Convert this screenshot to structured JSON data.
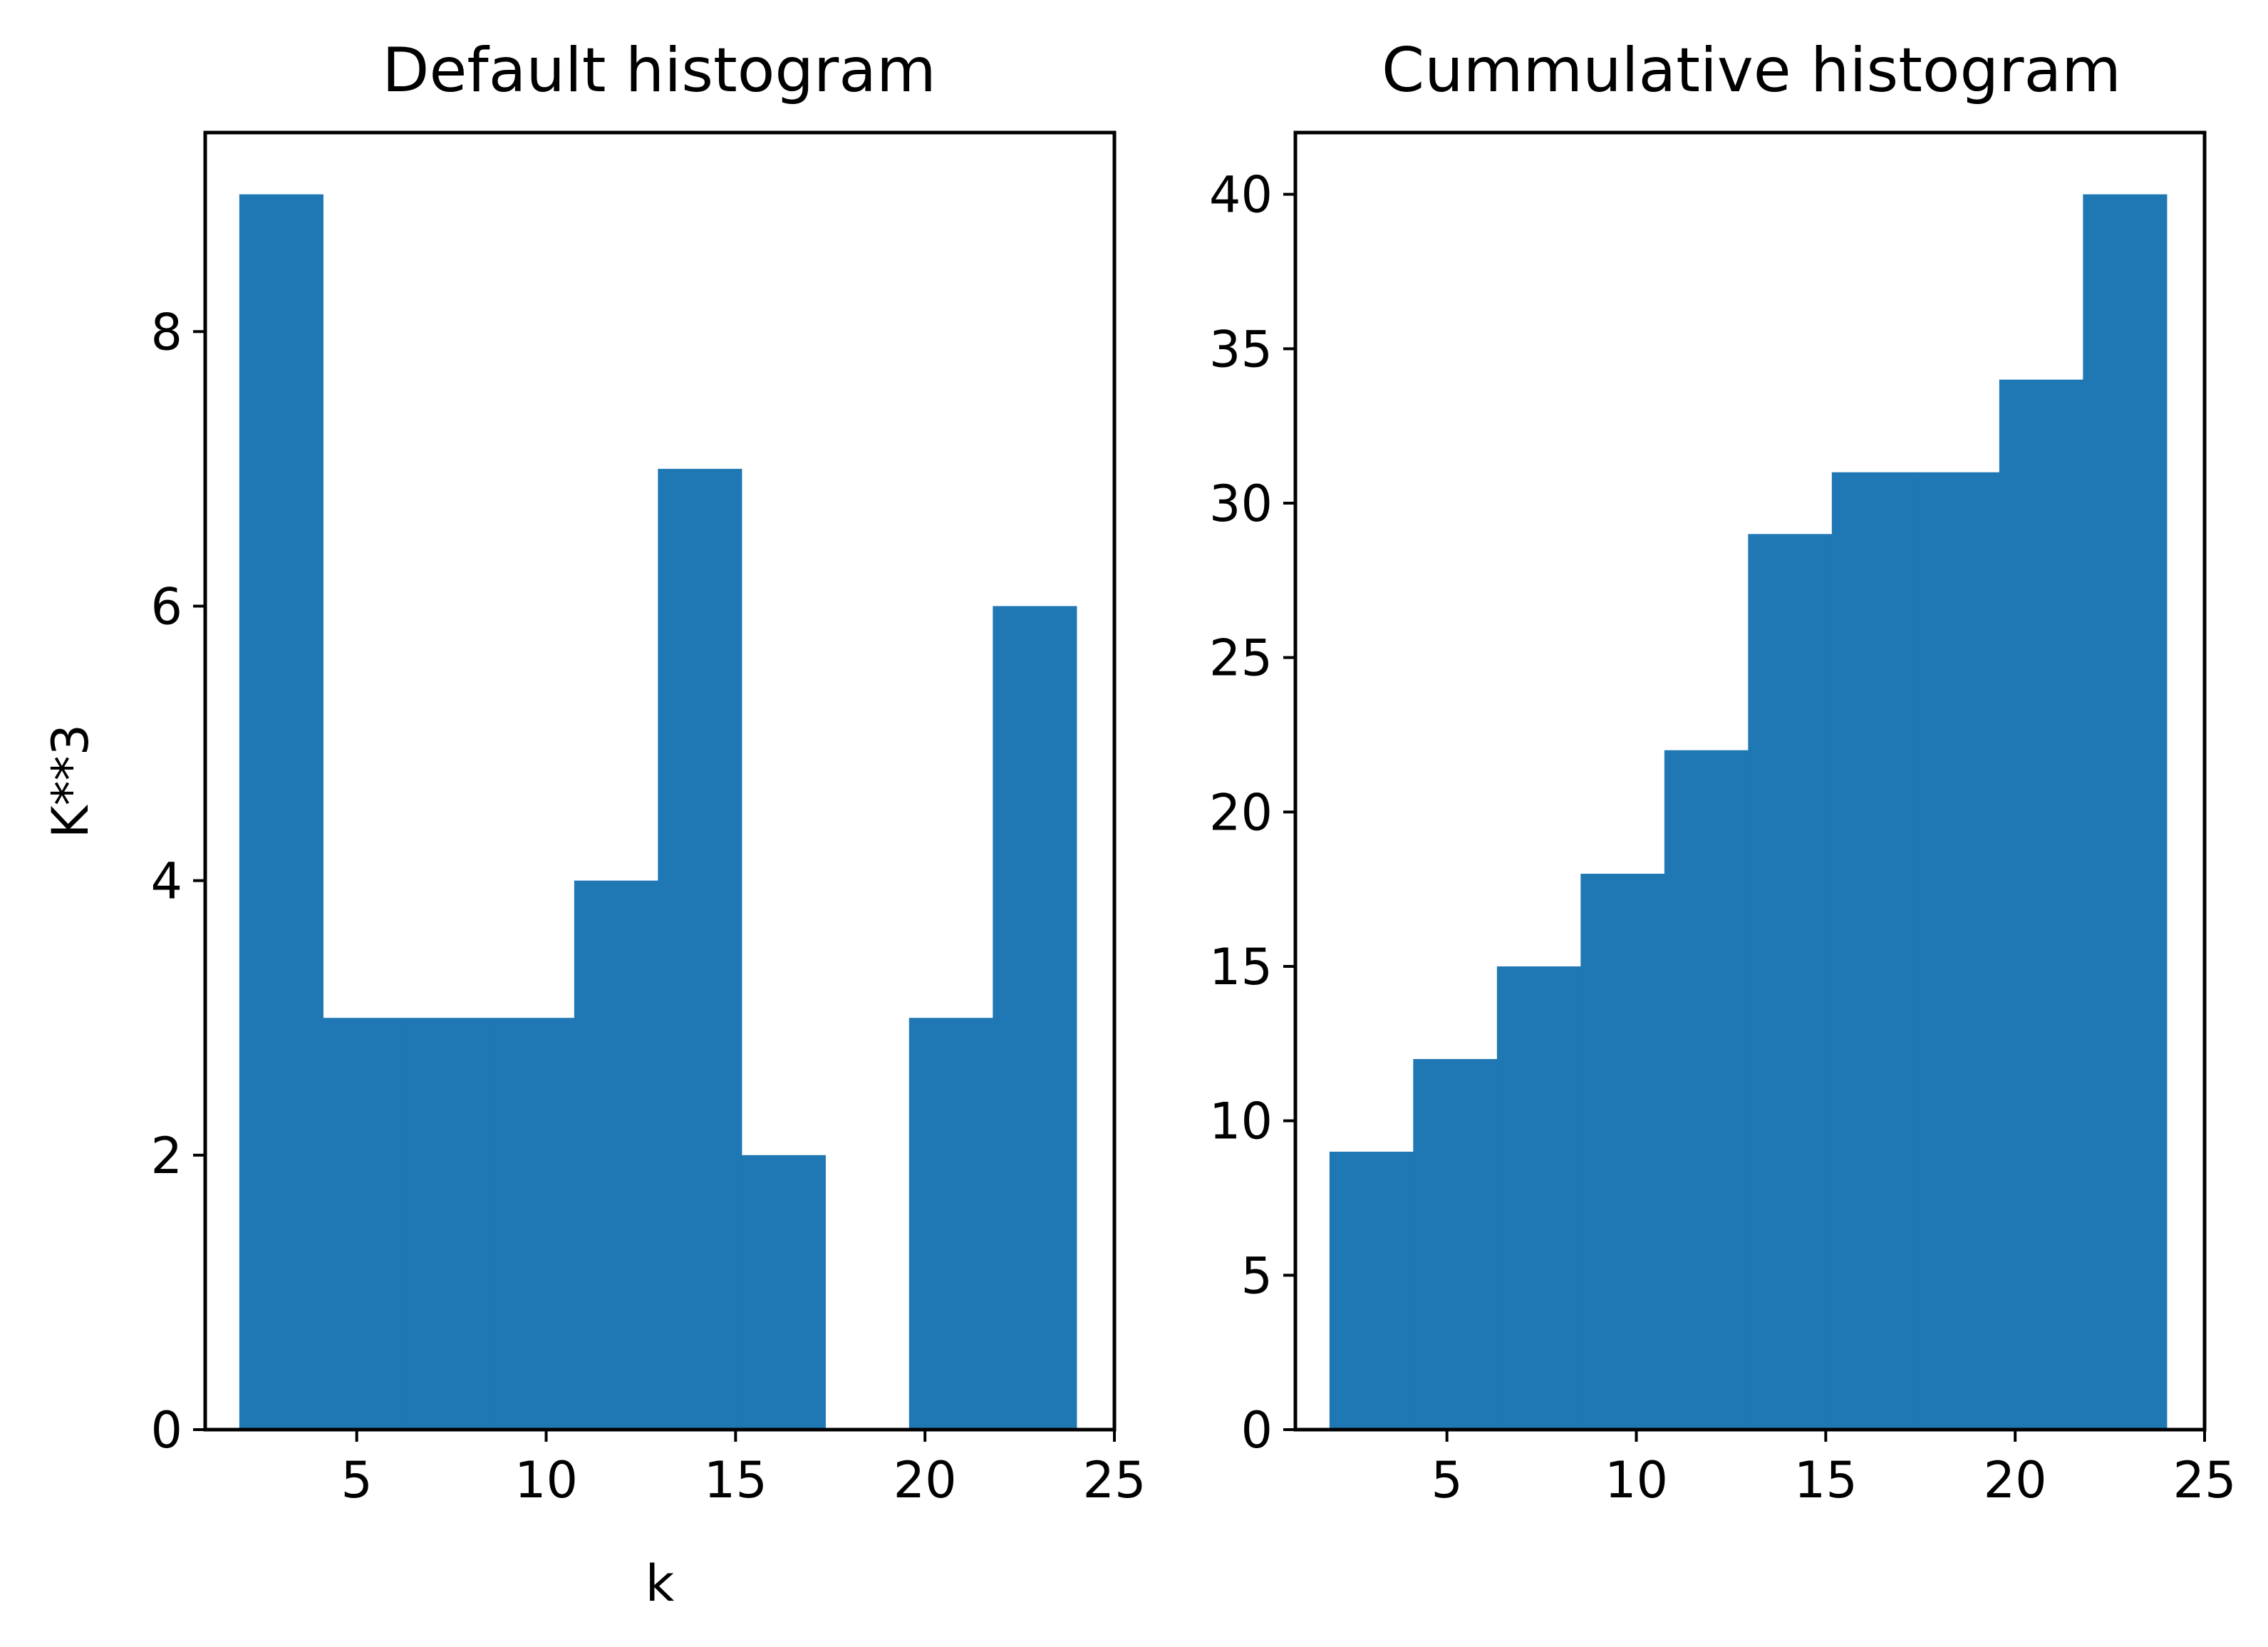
{
  "accent_color": "#1f77b4",
  "chart_data": [
    {
      "type": "bar",
      "title": "Default histogram",
      "xlabel": "k",
      "ylabel": "K**3",
      "bin_edges": [
        1.9,
        4.11,
        6.32,
        8.53,
        10.74,
        12.95,
        15.16,
        17.37,
        19.58,
        21.79,
        24.0
      ],
      "values": [
        9,
        3,
        3,
        3,
        4,
        7,
        2,
        0,
        3,
        6
      ],
      "xlim": [
        1,
        25
      ],
      "ylim": [
        0,
        9.45
      ],
      "xticks": [
        5,
        10,
        15,
        20,
        25
      ],
      "yticks": [
        0,
        2,
        4,
        6,
        8
      ],
      "color": "#1f77b4"
    },
    {
      "type": "bar",
      "title": "Cummulative histogram",
      "xlabel": "",
      "ylabel": "",
      "bin_edges": [
        1.9,
        4.11,
        6.32,
        8.53,
        10.74,
        12.95,
        15.16,
        17.37,
        19.58,
        21.79,
        24.0
      ],
      "values": [
        9,
        12,
        15,
        18,
        22,
        29,
        31,
        31,
        34,
        40
      ],
      "xlim": [
        1,
        25
      ],
      "ylim": [
        0,
        42
      ],
      "xticks": [
        5,
        10,
        15,
        20,
        25
      ],
      "yticks": [
        0,
        5,
        10,
        15,
        20,
        25,
        30,
        35,
        40
      ],
      "color": "#1f77b4"
    }
  ]
}
